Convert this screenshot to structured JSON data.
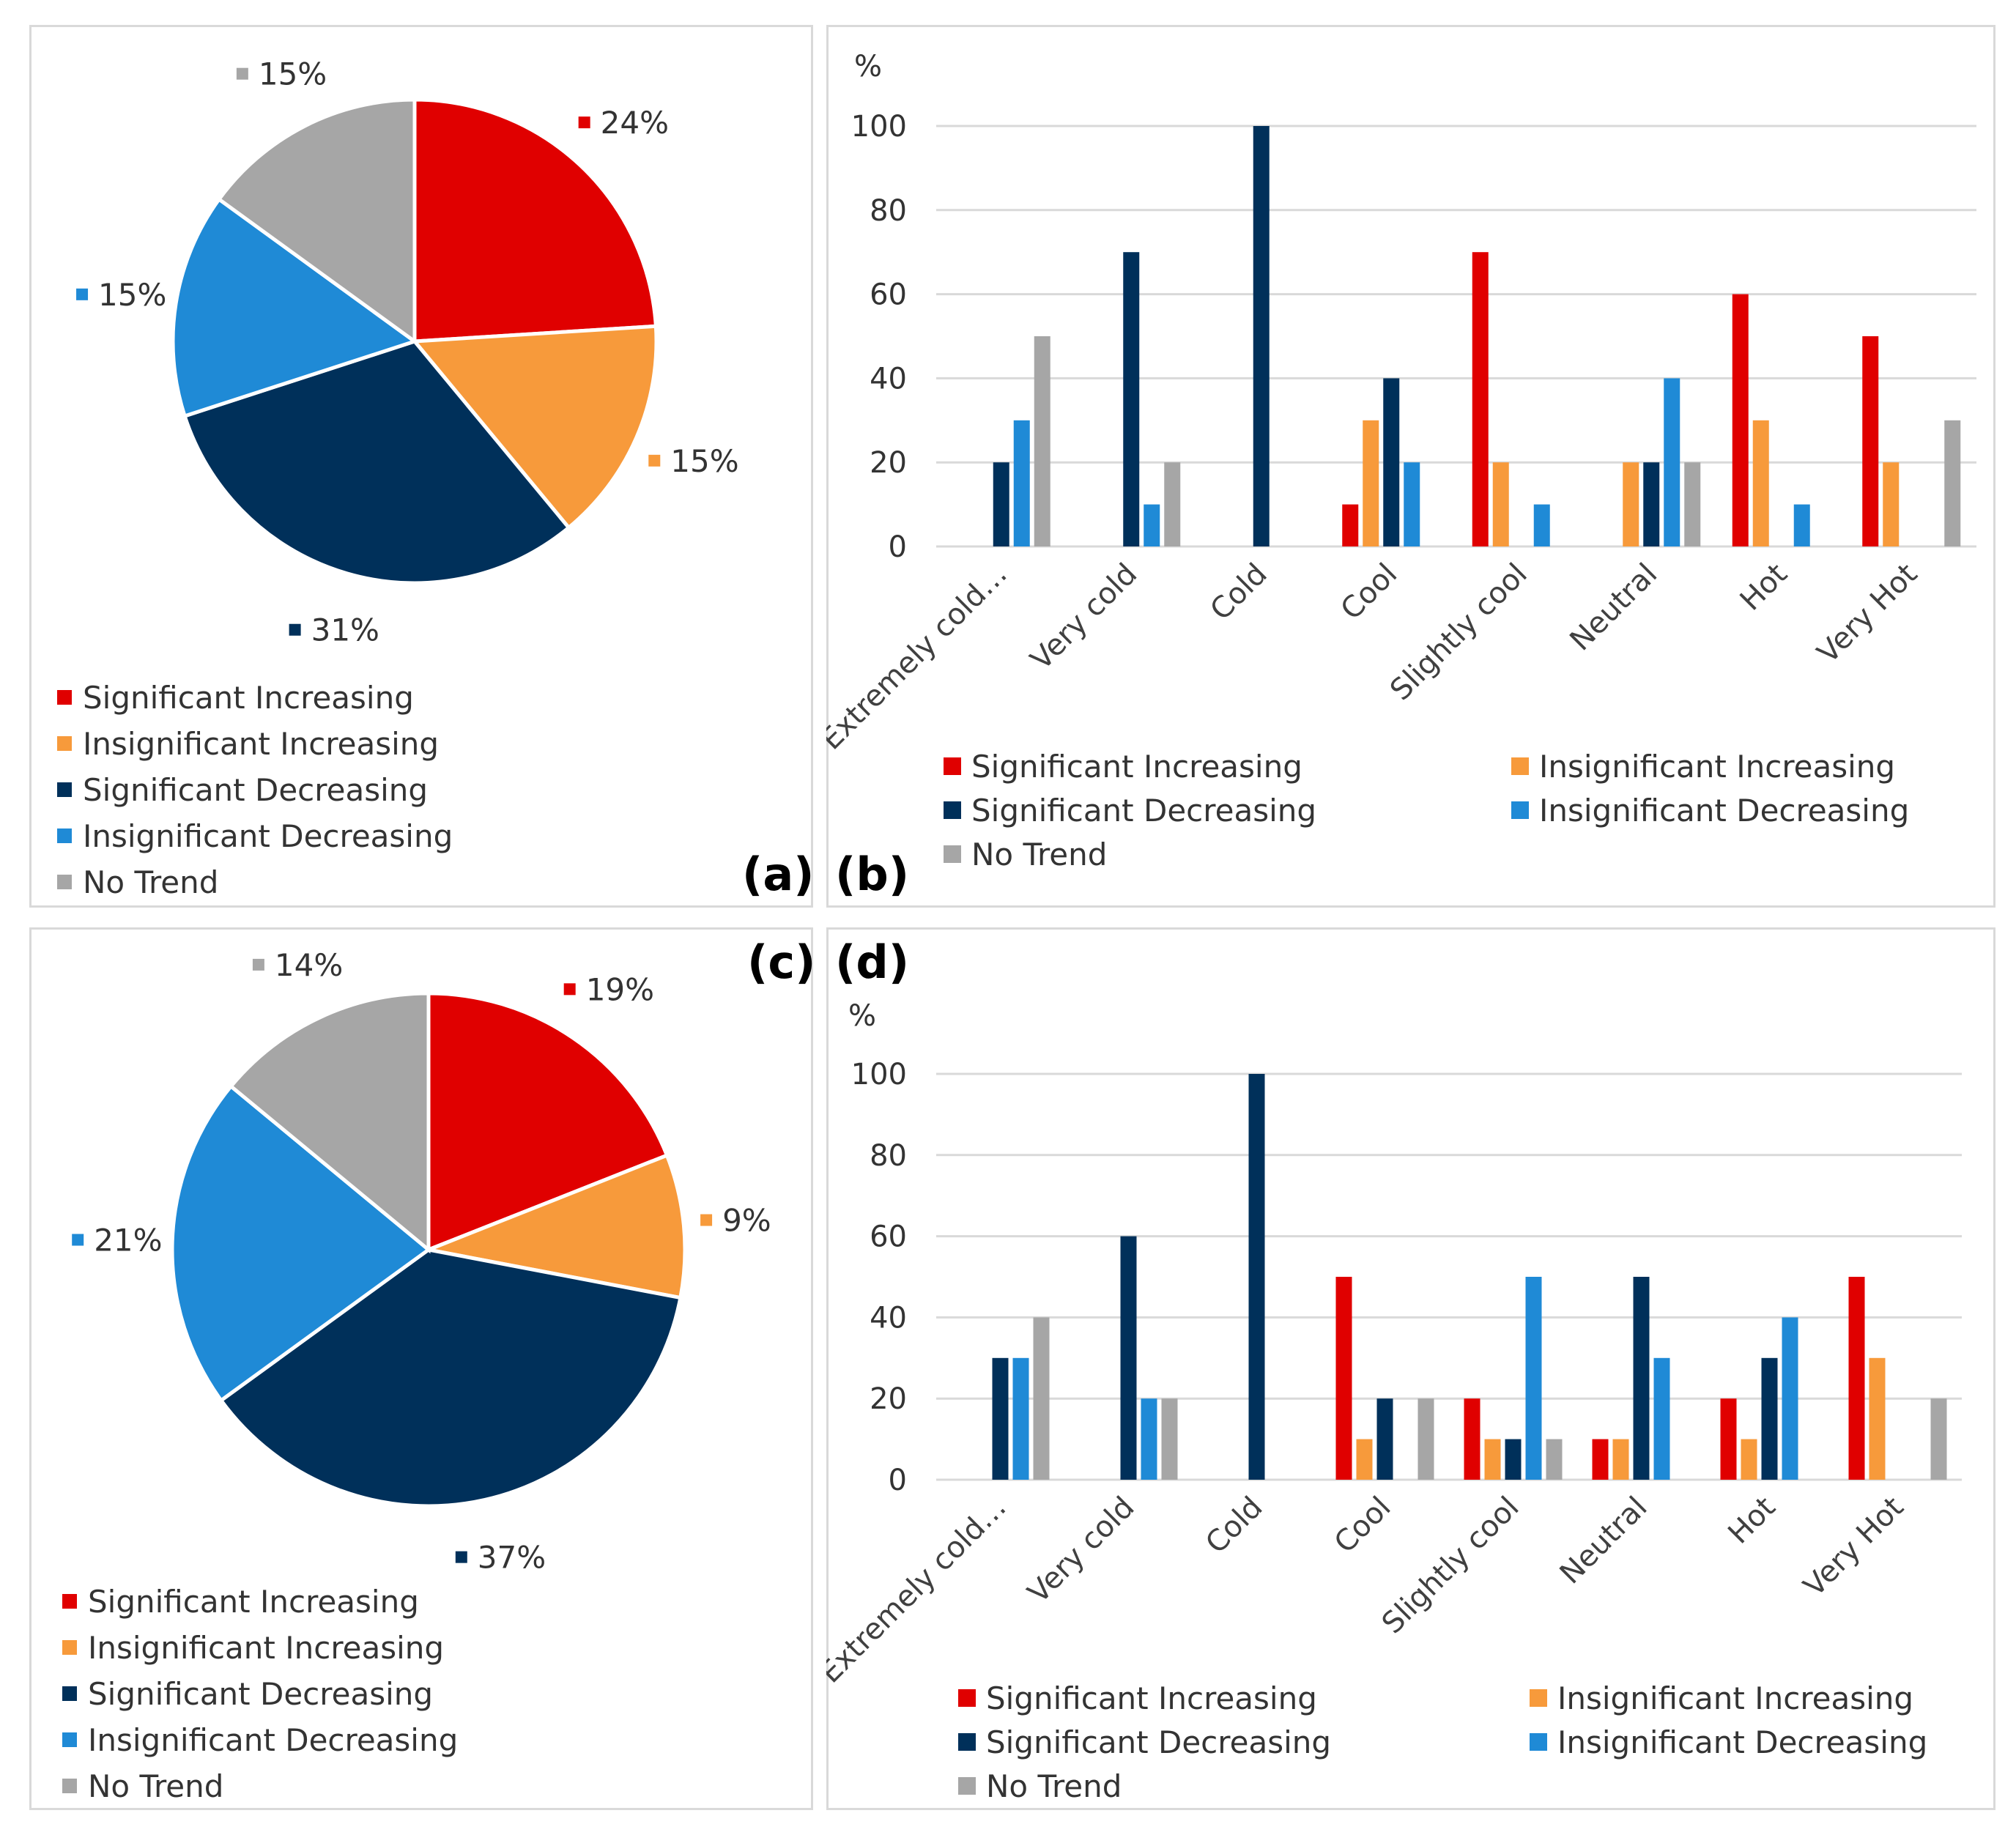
{
  "colors": {
    "sig_inc": "#e00000",
    "insig_inc": "#f79a3b",
    "sig_dec": "#00305a",
    "insig_dec": "#1f8ad6",
    "no_trend": "#a6a6a6",
    "grid": "#d9d9d9"
  },
  "legend": [
    "Significant Increasing",
    "Insignificant Increasing",
    "Significant Decreasing",
    "Insignificant Decreasing",
    "No Trend"
  ],
  "panels": {
    "a": "(a)",
    "b": "(b)",
    "c": "(c)",
    "d": "(d)"
  },
  "chart_data": [
    {
      "id": "a",
      "type": "pie",
      "labels": [
        "Significant Increasing",
        "Insignificant Increasing",
        "Significant Decreasing",
        "Insignificant Decreasing",
        "No Trend"
      ],
      "values": [
        24,
        15,
        31,
        15,
        15
      ],
      "value_labels": [
        "24%",
        "15%",
        "31%",
        "15%",
        "15%"
      ],
      "legend_position": "bottom-left"
    },
    {
      "id": "b",
      "type": "bar",
      "ylabel": "%",
      "ylim": [
        0,
        100
      ],
      "yticks": [
        0,
        20,
        40,
        60,
        80,
        100
      ],
      "grid": true,
      "legend_position": "bottom",
      "categories": [
        "Extremely cold…",
        "Very cold",
        "Cold",
        "Cool",
        "Slightly cool",
        "Neutral",
        "Hot",
        "Very Hot"
      ],
      "series": [
        {
          "name": "Significant Increasing",
          "values": [
            0,
            0,
            0,
            10,
            70,
            0,
            60,
            50
          ]
        },
        {
          "name": "Insignificant Increasing",
          "values": [
            0,
            0,
            0,
            30,
            20,
            20,
            30,
            20
          ]
        },
        {
          "name": "Significant Decreasing",
          "values": [
            20,
            70,
            100,
            40,
            0,
            20,
            0,
            0
          ]
        },
        {
          "name": "Insignificant Decreasing",
          "values": [
            30,
            10,
            0,
            20,
            10,
            40,
            10,
            0
          ]
        },
        {
          "name": "No Trend",
          "values": [
            50,
            20,
            0,
            0,
            0,
            20,
            0,
            30
          ]
        }
      ]
    },
    {
      "id": "c",
      "type": "pie",
      "labels": [
        "Significant Increasing",
        "Insignificant Increasing",
        "Significant Decreasing",
        "Insignificant Decreasing",
        "No Trend"
      ],
      "values": [
        19,
        9,
        37,
        21,
        14
      ],
      "value_labels": [
        "19%",
        "9%",
        "37%",
        "21%",
        "14%"
      ],
      "legend_position": "bottom-left"
    },
    {
      "id": "d",
      "type": "bar",
      "ylabel": "%",
      "ylim": [
        0,
        100
      ],
      "yticks": [
        0,
        20,
        40,
        60,
        80,
        100
      ],
      "grid": true,
      "legend_position": "bottom",
      "categories": [
        "Extremely cold…",
        "Very cold",
        "Cold",
        "Cool",
        "Slightly cool",
        "Neutral",
        "Hot",
        "Very Hot"
      ],
      "series": [
        {
          "name": "Significant Increasing",
          "values": [
            0,
            0,
            0,
            50,
            20,
            10,
            20,
            50
          ]
        },
        {
          "name": "Insignificant Increasing",
          "values": [
            0,
            0,
            0,
            10,
            10,
            10,
            10,
            30
          ]
        },
        {
          "name": "Significant Decreasing",
          "values": [
            30,
            60,
            100,
            20,
            10,
            50,
            30,
            0
          ]
        },
        {
          "name": "Insignificant Decreasing",
          "values": [
            30,
            20,
            0,
            0,
            50,
            30,
            40,
            0
          ]
        },
        {
          "name": "No Trend",
          "values": [
            40,
            20,
            0,
            20,
            10,
            0,
            0,
            20
          ]
        }
      ]
    }
  ]
}
